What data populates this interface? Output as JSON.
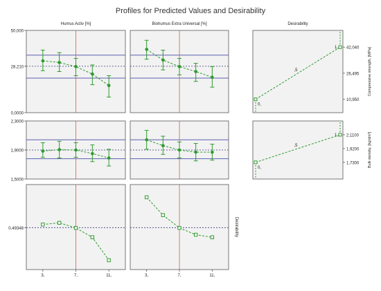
{
  "title": "Profiles for Predicted Values and Desirability",
  "colors": {
    "panel_bg": "#f2f2f2",
    "mean_line": "#5a5fae",
    "ref_line": "#d05a5a",
    "dashed": "#3a3a80",
    "series": "#2c9a2c"
  },
  "column_headers": [
    "Humus Activ [%]",
    "Biohumus Extra Universal [%]",
    "Desirability"
  ],
  "x_tick_labels": [
    "3,",
    "7,",
    "11,"
  ],
  "x_ref": 7,
  "chart_data": [
    {
      "type": "line",
      "title": "Humus Activ [%]",
      "ylabel": "",
      "ylim": [
        0,
        50
      ],
      "y_tick_labels": [
        "50,000",
        "28,210",
        "0,0000"
      ],
      "y_ticks": [
        50,
        28.21,
        0
      ],
      "ref_y": 28.21,
      "band": [
        21,
        35
      ],
      "x": [
        3,
        5,
        7,
        9,
        11
      ],
      "values": [
        31.5,
        30.5,
        28.0,
        23.5,
        16.5
      ],
      "err_low": [
        25.5,
        25.0,
        22.5,
        17.0,
        9.5
      ],
      "err_high": [
        38.0,
        36.5,
        33.0,
        29.0,
        22.5
      ],
      "grid": false
    },
    {
      "type": "line",
      "title": "Biohumus Extra Universal [%]",
      "ylabel": "",
      "ylim": [
        0,
        50
      ],
      "ref_y": 28.21,
      "band": [
        21,
        35
      ],
      "x": [
        3,
        5,
        7,
        9,
        11
      ],
      "values": [
        38.5,
        32.0,
        28.0,
        25.0,
        21.5
      ],
      "err_low": [
        32.5,
        26.0,
        23.0,
        19.0,
        15.5
      ],
      "err_high": [
        44.0,
        38.0,
        33.0,
        30.0,
        28.0
      ],
      "grid": false
    },
    {
      "type": "line",
      "title": "",
      "ylabel": "",
      "ylim": [
        1.5,
        2.3
      ],
      "y_tick_labels": [
        "2,3000",
        "1,9000",
        "1,5000"
      ],
      "y_ticks": [
        2.3,
        1.9,
        1.5
      ],
      "ref_y": 1.9,
      "band": [
        1.78,
        2.04
      ],
      "x": [
        3,
        5,
        7,
        9,
        11
      ],
      "values": [
        1.885,
        1.905,
        1.9,
        1.85,
        1.79
      ],
      "err_low": [
        1.8,
        1.79,
        1.8,
        1.74,
        1.68
      ],
      "err_high": [
        2.0,
        2.02,
        2.0,
        1.97,
        1.91
      ],
      "grid": false
    },
    {
      "type": "line",
      "title": "",
      "ylabel": "",
      "ylim": [
        1.5,
        2.3
      ],
      "ref_y": 1.9,
      "band": [
        1.78,
        2.04
      ],
      "x": [
        3,
        5,
        7,
        9,
        11
      ],
      "values": [
        2.04,
        1.96,
        1.9,
        1.87,
        1.87
      ],
      "err_low": [
        1.91,
        1.84,
        1.79,
        1.75,
        1.76
      ],
      "err_high": [
        2.17,
        2.09,
        2.01,
        1.99,
        1.98
      ],
      "grid": false
    },
    {
      "type": "line",
      "title": "",
      "ylabel": "",
      "ylim": [
        0,
        1
      ],
      "y_tick_labels": [
        "0,49348"
      ],
      "y_ticks": [
        0.4935
      ],
      "ref_y": 0.4935,
      "x": [
        3,
        5,
        7,
        9,
        11
      ],
      "values": [
        0.53,
        0.55,
        0.49,
        0.38,
        0.11
      ],
      "grid": false
    },
    {
      "type": "line",
      "title": "",
      "ylabel": "Desirability",
      "ylim": [
        0,
        1
      ],
      "ref_y": 0.4935,
      "x": [
        3,
        5,
        7,
        9,
        11
      ],
      "values": [
        0.85,
        0.64,
        0.49,
        0.41,
        0.38
      ],
      "grid": false
    },
    {
      "type": "line",
      "title": "Desirability",
      "ylabel": "Compressive strength, [MPa]",
      "ylim": [
        3,
        52
      ],
      "y_tick_labels": [
        "42,040",
        "26,495",
        "10,950"
      ],
      "y_ticks": [
        42.04,
        26.495,
        10.95
      ],
      "x_bottom": 10.95,
      "x_top": 42.04,
      "x_mid": 26.495,
      "d_low": 0,
      "d_high": 1,
      "mid_label": ",5",
      "low_label": "0,",
      "high_label": "1,",
      "grid": false
    },
    {
      "type": "line",
      "title": "",
      "ylabel": "Bulk density, [kg/dm³]",
      "ylim": [
        1.5,
        2.3
      ],
      "y_tick_labels": [
        "2,1100",
        "1,9200",
        "1,7300"
      ],
      "y_ticks": [
        2.11,
        1.92,
        1.73
      ],
      "x_bottom": 1.73,
      "x_top": 2.11,
      "x_mid": 1.92,
      "d_low": 0,
      "d_high": 1,
      "mid_label": ",5",
      "low_label": "0,",
      "high_label": "1,",
      "grid": false
    }
  ]
}
